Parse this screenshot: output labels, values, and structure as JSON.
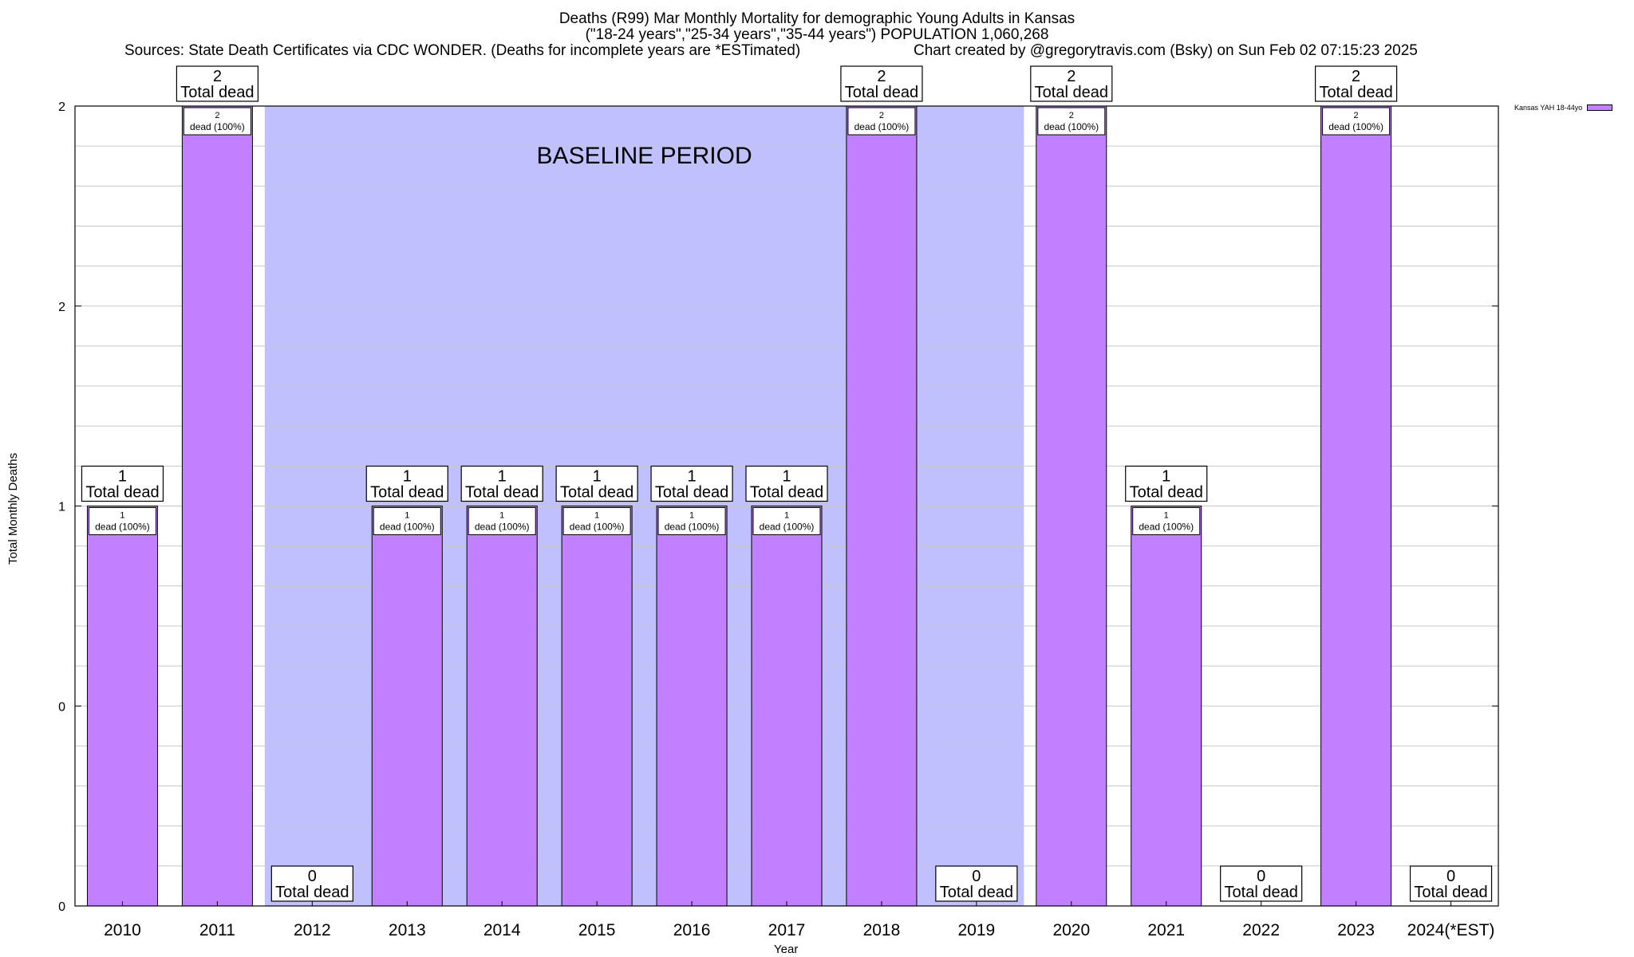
{
  "header": {
    "title_line1": "Deaths (R99) Mar Monthly Mortality for demographic Young Adults in Kansas",
    "title_line2": "(\"18-24 years\",\"25-34 years\",\"35-44 years\") POPULATION 1,060,268",
    "title_line3": "Sources: State Death Certificates via CDC WONDER. (Deaths for incomplete years are *ESTimated)",
    "credit": "Chart created by @gregorytravis.com (Bsky) on Sun Feb 02 07:15:23 2025"
  },
  "colors": {
    "bar": "#c080ff",
    "baseline_shade": "#c0c0ff",
    "grid": "#c8c8c8"
  },
  "chart_data": {
    "type": "bar",
    "categories": [
      "2010",
      "2011",
      "2012",
      "2013",
      "2014",
      "2015",
      "2016",
      "2017",
      "2018",
      "2019",
      "2020",
      "2021",
      "2022",
      "2023",
      "2024(*EST)"
    ],
    "series": [
      {
        "name": "Kansas YAH 18-44yo",
        "values": [
          1,
          2,
          0,
          1,
          1,
          1,
          1,
          1,
          2,
          0,
          2,
          1,
          0,
          2,
          0
        ]
      }
    ],
    "xlabel": "Year",
    "ylabel": "Total Monthly Deaths",
    "ylim": [
      0,
      2
    ],
    "y_tick_labels": [
      "0",
      "0",
      "1",
      "2",
      "2"
    ],
    "grid": true,
    "legend_position": "top-right",
    "annotations": {
      "shaded_region_label": "BASELINE PERIOD",
      "shaded_region_from": "2012",
      "shaded_region_to": "2019",
      "total_label": "Total dead",
      "inner_label_suffix": "dead (100%)"
    }
  }
}
